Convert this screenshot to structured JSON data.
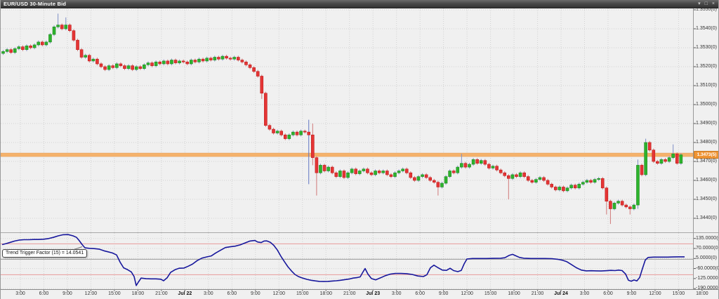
{
  "window": {
    "title": "EUR/USD 30-Minute Bid",
    "controls": {
      "collapse": "▾",
      "restore": "□",
      "close": "×"
    }
  },
  "colors": {
    "background": "#f0f0f0",
    "grid": "#d2d2d2",
    "candle_up": "#2db32d",
    "candle_up_border": "#1f8a1f",
    "candle_down": "#e53535",
    "candle_down_border": "#bd1d1d",
    "wick_up": "#7d8fc5",
    "wick_down": "#d07878",
    "wick_blue": "#5f74c2",
    "indicator_line": "#17179c",
    "ref_line": "#e89a9a",
    "zero_line": "#9a9a9a",
    "price_band": "#f5b26b",
    "price_tag_bg": "#ef9434"
  },
  "chart_data": {
    "type": "candlestick",
    "symbol": "EUR/USD",
    "timeframe": "30-Minute",
    "price_type": "Bid",
    "current_price_label": "1.3473(5)",
    "current_price_value": 1.34735,
    "price_axis_labels": [
      "1.3550(0)",
      "1.3540(0)",
      "1.3530(0)",
      "1.3520(0)",
      "1.3510(0)",
      "1.3500(0)",
      "1.3490(0)",
      "1.3480(0)",
      "1.3470(0)",
      "1.3460(0)",
      "1.3450(0)",
      "1.3440(0)"
    ],
    "price_axis_values": [
      1.355,
      1.354,
      1.353,
      1.352,
      1.351,
      1.35,
      1.349,
      1.348,
      1.347,
      1.346,
      1.345,
      1.344
    ],
    "time_axis_labels": [
      "3:00",
      "6:00",
      "9:00",
      "12:00",
      "15:00",
      "18:00",
      "21:00",
      "Jul 22",
      "3:00",
      "6:00",
      "9:00",
      "12:00",
      "15:00",
      "18:00",
      "21:00",
      "Jul 23",
      "3:00",
      "6:00",
      "9:00",
      "12:00",
      "15:00",
      "18:00",
      "21:00",
      "Jul 24",
      "3:00",
      "6:00",
      "9:00",
      "12:00",
      "15:00",
      "18:00"
    ],
    "candles": {
      "first_open": 1.3527,
      "closes": [
        1.3528,
        1.3529,
        1.35275,
        1.35295,
        1.35305,
        1.3529,
        1.3531,
        1.353,
        1.35315,
        1.3533,
        1.35315,
        1.3533,
        1.3537,
        1.3541,
        1.3542,
        1.354,
        1.3542,
        1.3539,
        1.3534,
        1.3529,
        1.3525,
        1.3526,
        1.3523,
        1.3524,
        1.35215,
        1.352,
        1.35185,
        1.35205,
        1.35195,
        1.35215,
        1.35205,
        1.3519,
        1.35205,
        1.35185,
        1.352,
        1.3519,
        1.3521,
        1.3522,
        1.35205,
        1.35225,
        1.35215,
        1.3523,
        1.35215,
        1.35235,
        1.3522,
        1.3523,
        1.35225,
        1.35215,
        1.35235,
        1.35225,
        1.3524,
        1.3523,
        1.35245,
        1.35235,
        1.3525,
        1.3524,
        1.35255,
        1.35245,
        1.3524,
        1.3525,
        1.35235,
        1.35225,
        1.3521,
        1.35195,
        1.35175,
        1.3515,
        1.3506,
        1.3489,
        1.3487,
        1.3485,
        1.3486,
        1.3484,
        1.3482,
        1.3484,
        1.34855,
        1.3484,
        1.3486,
        1.34855,
        1.3484,
        1.3472,
        1.3464,
        1.3468,
        1.3465,
        1.3467,
        1.3464,
        1.3462,
        1.3465,
        1.34615,
        1.3464,
        1.3466,
        1.34635,
        1.3465,
        1.3466,
        1.3464,
        1.3463,
        1.3465,
        1.3464,
        1.3465,
        1.3463,
        1.3462,
        1.3464,
        1.3465,
        1.3466,
        1.3464,
        1.34615,
        1.346,
        1.3462,
        1.3463,
        1.34615,
        1.346,
        1.3459,
        1.34565,
        1.34585,
        1.3462,
        1.3465,
        1.3464,
        1.3467,
        1.3469,
        1.3467,
        1.34685,
        1.3471,
        1.3469,
        1.34705,
        1.34685,
        1.34665,
        1.34675,
        1.34655,
        1.3464,
        1.34625,
        1.3461,
        1.3463,
        1.3462,
        1.3464,
        1.3462,
        1.346,
        1.3459,
        1.34605,
        1.34615,
        1.346,
        1.3458,
        1.34565,
        1.3455,
        1.34565,
        1.34545,
        1.3456,
        1.34575,
        1.3456,
        1.3458,
        1.3459,
        1.346,
        1.3459,
        1.34605,
        1.3461,
        1.3456,
        1.3449,
        1.3445,
        1.3448,
        1.3449,
        1.3447,
        1.3446,
        1.3445,
        1.3447,
        1.3468,
        1.3463,
        1.348,
        1.3476,
        1.347,
        1.3469,
        1.3471,
        1.347,
        1.3472,
        1.3474,
        1.3469,
        1.34735
      ],
      "wick_overrides": {
        "14": {
          "h": 1.3548
        },
        "16": {
          "h": 1.3546
        },
        "66": {
          "l": 1.3503
        },
        "78": {
          "h": 1.3492,
          "l": 1.3458,
          "wick": "blue"
        },
        "79": {
          "h": 1.349,
          "l": 1.3468
        },
        "80": {
          "l": 1.3452
        },
        "111": {
          "l": 1.3452
        },
        "117": {
          "h": 1.3474
        },
        "129": {
          "l": 1.345
        },
        "154": {
          "l": 1.3442
        },
        "155": {
          "l": 1.3437
        },
        "160": {
          "l": 1.3442
        },
        "162": {
          "h": 1.3471,
          "l": 1.3445
        },
        "164": {
          "h": 1.3482
        },
        "171": {
          "h": 1.3479
        }
      }
    },
    "indicator": {
      "name": "Trend Trigger Factor",
      "period": 15,
      "last_value": 14.0541,
      "tooltip": "Trend Trigger Factor (15) = 14.0541",
      "axis_labels": [
        "135.0000(0)",
        "70.0000(0)",
        "5.0000(0)",
        "-60.0000(0)",
        "-125.0000(0)",
        "-190.0000(0)"
      ],
      "axis_values": [
        135,
        70,
        5,
        -60,
        -125,
        -190
      ],
      "ref_lines": [
        100,
        -100
      ],
      "zero_line": 0,
      "points": [
        [
          2,
          95
        ],
        [
          8,
          102
        ],
        [
          14,
          110
        ],
        [
          20,
          118
        ],
        [
          26,
          124
        ],
        [
          33,
          127
        ],
        [
          40,
          127
        ],
        [
          47,
          128
        ],
        [
          54,
          128
        ],
        [
          61,
          130
        ],
        [
          68,
          134
        ],
        [
          75,
          142
        ],
        [
          82,
          152
        ],
        [
          89,
          159
        ],
        [
          96,
          160
        ],
        [
          103,
          152
        ],
        [
          108,
          142
        ],
        [
          112,
          120
        ],
        [
          116,
          95
        ],
        [
          120,
          74
        ],
        [
          126,
          71
        ],
        [
          133,
          69
        ],
        [
          140,
          66
        ],
        [
          147,
          55
        ],
        [
          153,
          48
        ],
        [
          159,
          41
        ],
        [
          165,
          28
        ],
        [
          170,
          -18
        ],
        [
          175,
          -55
        ],
        [
          181,
          -68
        ],
        [
          186,
          -82
        ],
        [
          190,
          -112
        ],
        [
          193,
          -170
        ],
        [
          196,
          -148
        ],
        [
          200,
          -122
        ],
        [
          207,
          -126
        ],
        [
          214,
          -127
        ],
        [
          221,
          -127
        ],
        [
          228,
          -129
        ],
        [
          232,
          -139
        ],
        [
          237,
          -120
        ],
        [
          242,
          -85
        ],
        [
          248,
          -68
        ],
        [
          254,
          -58
        ],
        [
          261,
          -57
        ],
        [
          267,
          -45
        ],
        [
          273,
          -32
        ],
        [
          280,
          -8
        ],
        [
          287,
          8
        ],
        [
          294,
          16
        ],
        [
          300,
          22
        ],
        [
          306,
          40
        ],
        [
          313,
          58
        ],
        [
          320,
          76
        ],
        [
          327,
          81
        ],
        [
          334,
          85
        ],
        [
          341,
          93
        ],
        [
          348,
          106
        ],
        [
          355,
          118
        ],
        [
          362,
          122
        ],
        [
          366,
          112
        ],
        [
          371,
          108
        ],
        [
          375,
          118
        ],
        [
          379,
          119
        ],
        [
          384,
          110
        ],
        [
          389,
          90
        ],
        [
          394,
          60
        ],
        [
          399,
          20
        ],
        [
          404,
          -15
        ],
        [
          409,
          -48
        ],
        [
          414,
          -75
        ],
        [
          419,
          -98
        ],
        [
          424,
          -112
        ],
        [
          430,
          -122
        ],
        [
          436,
          -130
        ],
        [
          442,
          -136
        ],
        [
          448,
          -140
        ],
        [
          454,
          -143
        ],
        [
          460,
          -144
        ],
        [
          466,
          -143
        ],
        [
          472,
          -141
        ],
        [
          478,
          -139
        ],
        [
          484,
          -136
        ],
        [
          490,
          -132
        ],
        [
          496,
          -128
        ],
        [
          502,
          -122
        ],
        [
          508,
          -118
        ],
        [
          512,
          -114
        ],
        [
          516,
          -82
        ],
        [
          519,
          -60
        ],
        [
          523,
          -96
        ],
        [
          528,
          -125
        ],
        [
          534,
          -133
        ],
        [
          541,
          -120
        ],
        [
          548,
          -106
        ],
        [
          555,
          -96
        ],
        [
          562,
          -92
        ],
        [
          570,
          -92
        ],
        [
          578,
          -93
        ],
        [
          586,
          -98
        ],
        [
          594,
          -108
        ],
        [
          602,
          -112
        ],
        [
          607,
          -100
        ],
        [
          612,
          -55
        ],
        [
          617,
          -38
        ],
        [
          623,
          -55
        ],
        [
          629,
          -70
        ],
        [
          635,
          -72
        ],
        [
          640,
          -58
        ],
        [
          645,
          -73
        ],
        [
          651,
          -80
        ],
        [
          656,
          -72
        ],
        [
          660,
          -30
        ],
        [
          664,
          2
        ],
        [
          672,
          5
        ],
        [
          682,
          5
        ],
        [
          692,
          5
        ],
        [
          702,
          6
        ],
        [
          712,
          7
        ],
        [
          718,
          10
        ],
        [
          724,
          25
        ],
        [
          729,
          32
        ],
        [
          734,
          22
        ],
        [
          739,
          12
        ],
        [
          745,
          7
        ],
        [
          755,
          5
        ],
        [
          765,
          5
        ],
        [
          775,
          5
        ],
        [
          785,
          4
        ],
        [
          793,
          0
        ],
        [
          800,
          -6
        ],
        [
          806,
          -15
        ],
        [
          813,
          -35
        ],
        [
          820,
          -55
        ],
        [
          827,
          -70
        ],
        [
          834,
          -75
        ],
        [
          841,
          -74
        ],
        [
          848,
          -75
        ],
        [
          855,
          -76
        ],
        [
          862,
          -74
        ],
        [
          869,
          -72
        ],
        [
          875,
          -73
        ],
        [
          880,
          -70
        ],
        [
          885,
          -73
        ],
        [
          890,
          -96
        ],
        [
          894,
          -136
        ],
        [
          898,
          -142
        ],
        [
          902,
          -134
        ],
        [
          906,
          -140
        ],
        [
          910,
          -118
        ],
        [
          914,
          -60
        ],
        [
          918,
          -5
        ],
        [
          922,
          12
        ],
        [
          930,
          14
        ],
        [
          940,
          14
        ],
        [
          950,
          14
        ],
        [
          958,
          15
        ],
        [
          966,
          16
        ],
        [
          974,
          16
        ]
      ]
    }
  }
}
